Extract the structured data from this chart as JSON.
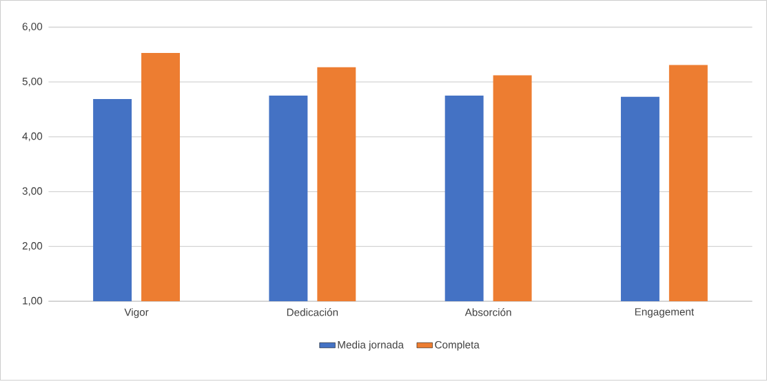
{
  "chart_data": {
    "type": "bar",
    "categories": [
      "Vigor",
      "Dedicación",
      "Absorción",
      "Engagement"
    ],
    "series": [
      {
        "name": "Media jornada",
        "color": "#4472c4",
        "values": [
          4.69,
          4.75,
          4.75,
          4.73
        ]
      },
      {
        "name": "Completa",
        "color": "#ed7d31",
        "values": [
          5.53,
          5.27,
          5.12,
          5.31
        ]
      }
    ],
    "ylim": [
      1,
      6
    ],
    "yticks": [
      {
        "value": 1,
        "label": "1,00"
      },
      {
        "value": 2,
        "label": "2,00"
      },
      {
        "value": 3,
        "label": "3,00"
      },
      {
        "value": 4,
        "label": "4,00"
      },
      {
        "value": 5,
        "label": "5,00"
      },
      {
        "value": 6,
        "label": "6,00"
      }
    ],
    "grid": "y",
    "legend": "bottom"
  }
}
